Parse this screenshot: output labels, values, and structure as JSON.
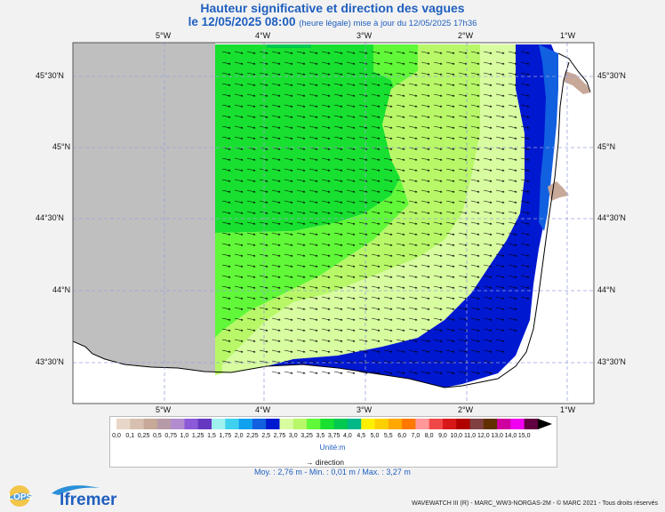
{
  "header": {
    "title": "Hauteur significative et direction des vagues",
    "date_label": "le 12/05/2025 08:00",
    "update_note": "(heure légale) mise à jour du 12/05/2025 17h36"
  },
  "map": {
    "longitude_labels": [
      "5°W",
      "4°W",
      "3°W",
      "2°W",
      "1°W"
    ],
    "latitude_labels": [
      "45°30'N",
      "45°N",
      "44°30'N",
      "44°N",
      "43°30'N"
    ],
    "land_color": "#c8c8c8",
    "mask_color": "#bfbfbf"
  },
  "legend": {
    "levels": [
      "0,0",
      "0,1",
      "0,25",
      "0,5",
      "0,75",
      "1,0",
      "1,25",
      "1,5",
      "1,75",
      "2,0",
      "2,25",
      "2,5",
      "2,75",
      "3,0",
      "3,25",
      "3,5",
      "3,75",
      "4,0",
      "4,5",
      "5,0",
      "5,5",
      "6,0",
      "7,0",
      "8,0",
      "9,0",
      "10,0",
      "11,0",
      "12,0",
      "13,0",
      "14,0",
      "15,0"
    ],
    "colors": [
      "#e8d6c8",
      "#d8c0b0",
      "#c8a898",
      "#b79aa8",
      "#b38cd0",
      "#8c5ad8",
      "#6438c0",
      "#a0f0f0",
      "#40d0f0",
      "#10a0f0",
      "#1060e0",
      "#0018d0",
      "#d8fca0",
      "#b8f868",
      "#60f838",
      "#18e030",
      "#00c850",
      "#00b888",
      "#fff000",
      "#ffd000",
      "#ffa800",
      "#ff7800",
      "#ff9898",
      "#f04848",
      "#d81818",
      "#b00000",
      "#804040",
      "#603000",
      "#d000a0",
      "#f000f0",
      "#600040"
    ],
    "unit_label": "Unité:m",
    "direction_label": "direction",
    "stats": "Moy. : 2,76 m   -   Min. : 0,01 m / Max. : 3,27 m"
  },
  "footer": {
    "copyright": "WAVEWATCH III (R) - MARC_WW3-NORGAS-2M - © MARC 2021 - Tous droits réservés",
    "lops_logo": "LOPS",
    "ifremer_logo": "Ifremer"
  }
}
